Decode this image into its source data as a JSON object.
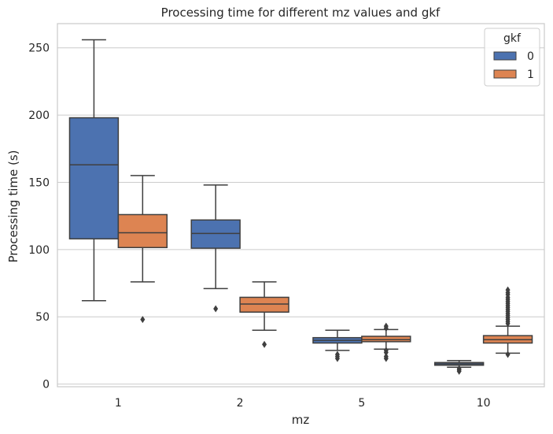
{
  "chart_data": {
    "type": "box",
    "title": "Processing time for different mz values and gkf",
    "xlabel": "mz",
    "ylabel": "Processing time (s)",
    "categories": [
      "1",
      "2",
      "5",
      "10"
    ],
    "ylim": [
      -2,
      268
    ],
    "yticks": [
      0,
      50,
      100,
      150,
      200,
      250
    ],
    "grid": "horizontal",
    "legend": {
      "title": "gkf",
      "placement": "top-right"
    },
    "series": [
      {
        "name": "0",
        "color": "#4c72b0",
        "boxes": [
          {
            "whisker_low": 62,
            "q1": 108,
            "median": 163,
            "q3": 198,
            "whisker_high": 256,
            "outliers": []
          },
          {
            "whisker_low": 71,
            "q1": 101,
            "median": 112,
            "q3": 122,
            "whisker_high": 148,
            "outliers": [
              56
            ]
          },
          {
            "whisker_low": 25,
            "q1": 30.5,
            "median": 32.5,
            "q3": 34.5,
            "whisker_high": 40,
            "outliers": [
              19,
              20.5,
              22
            ]
          },
          {
            "whisker_low": 12.5,
            "q1": 14,
            "median": 15,
            "q3": 16,
            "whisker_high": 17.5,
            "outliers": [
              9.5,
              10.5,
              11.5
            ]
          }
        ]
      },
      {
        "name": "1",
        "color": "#dd8452",
        "boxes": [
          {
            "whisker_low": 76,
            "q1": 101.5,
            "median": 112.5,
            "q3": 126,
            "whisker_high": 155,
            "outliers": [
              48
            ]
          },
          {
            "whisker_low": 40,
            "q1": 53.5,
            "median": 59.5,
            "q3": 64.5,
            "whisker_high": 76,
            "outliers": [
              29.5
            ]
          },
          {
            "whisker_low": 26,
            "q1": 31.5,
            "median": 33,
            "q3": 35.5,
            "whisker_high": 40.5,
            "outliers": [
              19,
              20.5,
              23.5,
              25,
              41.5,
              43
            ]
          },
          {
            "whisker_low": 23,
            "q1": 30.5,
            "median": 33,
            "q3": 36,
            "whisker_high": 43,
            "outliers": [
              22,
              45,
              46.5,
              48,
              49.5,
              51,
              52.5,
              54,
              55.5,
              57,
              58.5,
              60,
              61.5,
              63,
              64.5,
              66.5,
              68,
              70
            ]
          }
        ]
      }
    ]
  }
}
